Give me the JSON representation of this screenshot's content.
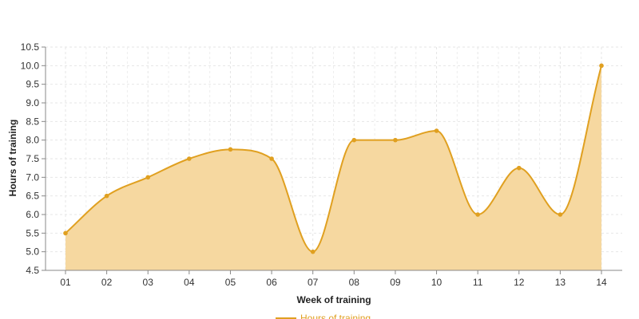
{
  "chart_data": {
    "type": "area",
    "x": [
      "01",
      "02",
      "03",
      "04",
      "05",
      "06",
      "07",
      "08",
      "09",
      "10",
      "11",
      "12",
      "13",
      "14"
    ],
    "series": [
      {
        "name": "Hours of training",
        "values": [
          5.5,
          6.5,
          7.0,
          7.5,
          7.75,
          7.5,
          5.0,
          8.0,
          8.0,
          8.25,
          6.0,
          7.25,
          6.0,
          10.0
        ],
        "line_color": "#e0a020",
        "fill_color": "#f6d8a0"
      }
    ],
    "xlabel": "Week of training",
    "ylabel": "Hours of training",
    "ylim": [
      4.5,
      10.5
    ],
    "yticks": [
      "4.5",
      "5.0",
      "5.5",
      "6.0",
      "6.5",
      "7.0",
      "7.5",
      "8.0",
      "8.5",
      "9.0",
      "9.5",
      "10.0",
      "10.5"
    ],
    "grid": true,
    "legend_position": "bottom",
    "curve": "smooth"
  }
}
